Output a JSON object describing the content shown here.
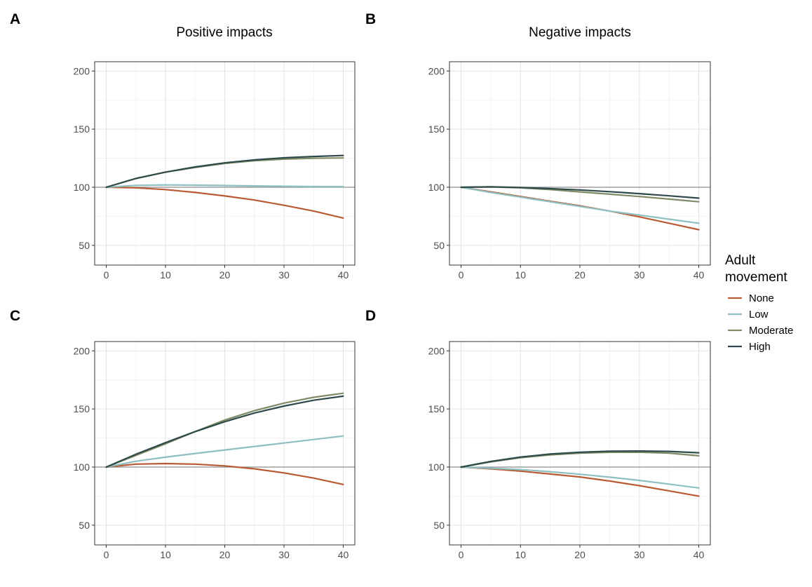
{
  "column_titles": [
    "Positive impacts",
    "Negative impacts"
  ],
  "legend": {
    "title_line1": "Adult",
    "title_line2": "movement",
    "items": [
      {
        "label": "None",
        "color": "#b85a34"
      },
      {
        "label": "Low",
        "color": "#8ebfc1"
      },
      {
        "label": "Moderate",
        "color": "#7f8a66"
      },
      {
        "label": "High",
        "color": "#2e4a4a"
      }
    ]
  },
  "chart_data": [
    {
      "panel": "A",
      "type": "line",
      "title": "Positive impacts",
      "xlim": [
        0,
        40
      ],
      "ylim": [
        33,
        208
      ],
      "xticks": [
        0,
        10,
        20,
        30,
        40
      ],
      "yticks": [
        50,
        100,
        150,
        200
      ],
      "reference_line_y": 100,
      "x": [
        0,
        5,
        10,
        15,
        20,
        25,
        30,
        35,
        40
      ],
      "series": [
        {
          "name": "None",
          "values": [
            100,
            99.5,
            98,
            95.5,
            92.5,
            89,
            84.5,
            79.5,
            73.5
          ]
        },
        {
          "name": "Low",
          "values": [
            100,
            101.6,
            102,
            101.8,
            101.5,
            101.1,
            100.8,
            100.6,
            100.5
          ]
        },
        {
          "name": "Moderate",
          "values": [
            100,
            107.5,
            113,
            117,
            120.5,
            122.8,
            124.2,
            124.9,
            125.2
          ]
        },
        {
          "name": "High",
          "values": [
            100,
            107.5,
            113,
            117.5,
            121,
            123.5,
            125.3,
            126.5,
            127.3
          ]
        }
      ]
    },
    {
      "panel": "B",
      "type": "line",
      "title": "Negative impacts",
      "xlim": [
        0,
        40
      ],
      "ylim": [
        33,
        208
      ],
      "xticks": [
        0,
        10,
        20,
        30,
        40
      ],
      "yticks": [
        50,
        100,
        150,
        200
      ],
      "reference_line_y": 100,
      "x": [
        0,
        5,
        10,
        15,
        20,
        25,
        30,
        35,
        40
      ],
      "series": [
        {
          "name": "None",
          "values": [
            100,
            96,
            92,
            88,
            84,
            79.5,
            74.5,
            69,
            63.5
          ]
        },
        {
          "name": "Low",
          "values": [
            100,
            95.5,
            91.5,
            87.5,
            83.5,
            79.5,
            76,
            72.5,
            69
          ]
        },
        {
          "name": "Moderate",
          "values": [
            100,
            100.2,
            99.5,
            98,
            96,
            94,
            92,
            89.8,
            87.5
          ]
        },
        {
          "name": "High",
          "values": [
            100,
            100.4,
            99.8,
            98.8,
            97.7,
            96.2,
            94.5,
            92.6,
            90.6
          ]
        }
      ]
    },
    {
      "panel": "C",
      "type": "line",
      "title": "",
      "xlim": [
        0,
        40
      ],
      "ylim": [
        33,
        208
      ],
      "xticks": [
        0,
        10,
        20,
        30,
        40
      ],
      "yticks": [
        50,
        100,
        150,
        200
      ],
      "reference_line_y": 100,
      "x": [
        0,
        5,
        10,
        15,
        20,
        25,
        30,
        35,
        40
      ],
      "series": [
        {
          "name": "None",
          "values": [
            100,
            102.5,
            103,
            102.5,
            101,
            98.5,
            95,
            90.5,
            85
          ]
        },
        {
          "name": "Low",
          "values": [
            100,
            105,
            108.5,
            111.7,
            114.7,
            117.7,
            120.7,
            123.7,
            126.7
          ]
        },
        {
          "name": "Moderate",
          "values": [
            100,
            110,
            120,
            130.5,
            140.5,
            148.5,
            155,
            160,
            163.5
          ]
        },
        {
          "name": "High",
          "values": [
            100,
            111,
            121,
            130.5,
            139,
            146.5,
            152.5,
            157.5,
            161
          ]
        }
      ]
    },
    {
      "panel": "D",
      "type": "line",
      "title": "",
      "xlim": [
        0,
        40
      ],
      "ylim": [
        33,
        208
      ],
      "xticks": [
        0,
        10,
        20,
        30,
        40
      ],
      "yticks": [
        50,
        100,
        150,
        200
      ],
      "reference_line_y": 100,
      "x": [
        0,
        5,
        10,
        15,
        20,
        25,
        30,
        35,
        40
      ],
      "series": [
        {
          "name": "None",
          "values": [
            100,
            98.5,
            96.5,
            94,
            91.5,
            88,
            84,
            79.5,
            75
          ]
        },
        {
          "name": "Low",
          "values": [
            100,
            99,
            97.8,
            96,
            93.8,
            91.3,
            88.5,
            85.3,
            82
          ]
        },
        {
          "name": "Moderate",
          "values": [
            100,
            104.5,
            108,
            110.5,
            112,
            112.7,
            112.8,
            112,
            109.7
          ]
        },
        {
          "name": "High",
          "values": [
            100,
            104.8,
            108.6,
            111.2,
            112.7,
            113.6,
            113.8,
            113.5,
            112.3
          ]
        }
      ]
    }
  ]
}
